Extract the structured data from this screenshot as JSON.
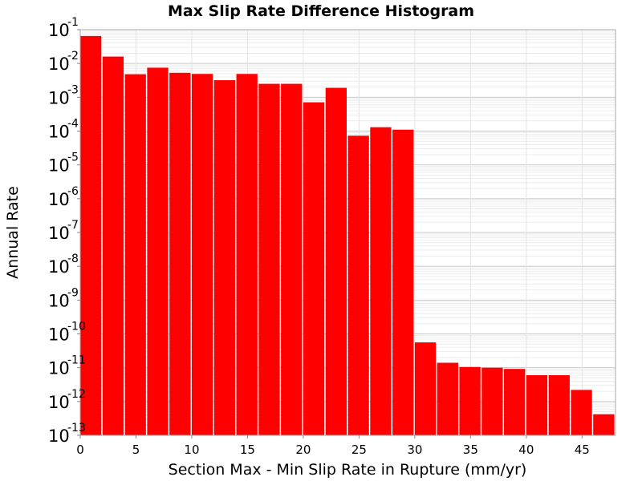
{
  "chart_data": {
    "type": "bar",
    "title": "Max Slip Rate Difference Histogram",
    "xlabel": "Section Max - Min Slip Rate in Rupture (mm/yr)",
    "ylabel": "Annual Rate",
    "yscale": "log",
    "ylim": [
      1e-13,
      0.1
    ],
    "xlim": [
      0,
      48
    ],
    "bin_width": 2,
    "grid": true,
    "bar_color": "#ff0000",
    "x_ticks": [
      "0",
      "5",
      "10",
      "15",
      "20",
      "25",
      "30",
      "35",
      "40",
      "45"
    ],
    "y_ticks": [
      {
        "base": "10",
        "exp": "-1"
      },
      {
        "base": "10",
        "exp": "-2"
      },
      {
        "base": "10",
        "exp": "-3"
      },
      {
        "base": "10",
        "exp": "-4"
      },
      {
        "base": "10",
        "exp": "-5"
      },
      {
        "base": "10",
        "exp": "-6"
      },
      {
        "base": "10",
        "exp": "-7"
      },
      {
        "base": "10",
        "exp": "-8"
      },
      {
        "base": "10",
        "exp": "-9"
      },
      {
        "base": "10",
        "exp": "-10"
      },
      {
        "base": "10",
        "exp": "-11"
      },
      {
        "base": "10",
        "exp": "-12"
      },
      {
        "base": "10",
        "exp": "-13"
      }
    ],
    "bins": [
      {
        "x": 0,
        "value": 0.065
      },
      {
        "x": 2,
        "value": 0.016
      },
      {
        "x": 4,
        "value": 0.0048
      },
      {
        "x": 6,
        "value": 0.0075
      },
      {
        "x": 8,
        "value": 0.0053
      },
      {
        "x": 10,
        "value": 0.0049
      },
      {
        "x": 12,
        "value": 0.0032
      },
      {
        "x": 14,
        "value": 0.0049
      },
      {
        "x": 16,
        "value": 0.0025
      },
      {
        "x": 18,
        "value": 0.0025
      },
      {
        "x": 20,
        "value": 0.00071
      },
      {
        "x": 22,
        "value": 0.0019
      },
      {
        "x": 24,
        "value": 7.3e-05
      },
      {
        "x": 26,
        "value": 0.00013
      },
      {
        "x": 28,
        "value": 0.00011
      },
      {
        "x": 30,
        "value": 5.6e-11
      },
      {
        "x": 32,
        "value": 1.4e-11
      },
      {
        "x": 34,
        "value": 1.05e-11
      },
      {
        "x": 36,
        "value": 1e-11
      },
      {
        "x": 38,
        "value": 9.2e-12
      },
      {
        "x": 40,
        "value": 6e-12
      },
      {
        "x": 42,
        "value": 6e-12
      },
      {
        "x": 44,
        "value": 2.2e-12
      },
      {
        "x": 46,
        "value": 4.2e-13
      }
    ]
  }
}
